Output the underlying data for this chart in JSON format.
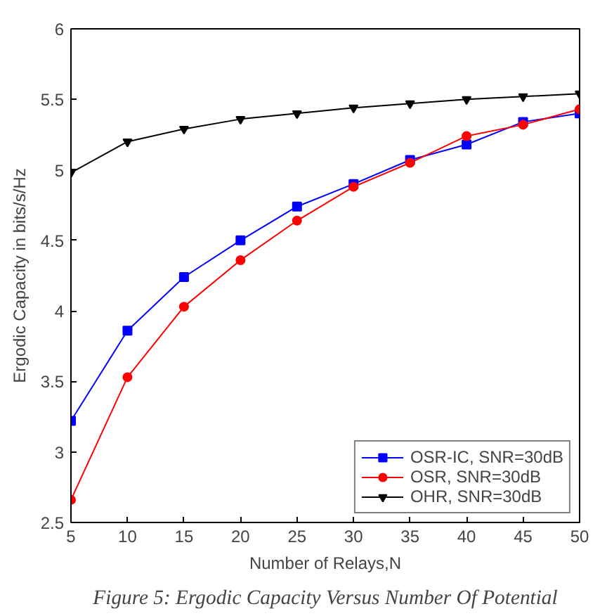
{
  "chart_data": {
    "type": "line",
    "xlabel": "Number of Relays,N",
    "ylabel": "Ergodic Capacity in bits/s/Hz",
    "x": [
      5,
      10,
      15,
      20,
      25,
      30,
      35,
      40,
      45,
      50
    ],
    "series": [
      {
        "name": "OSR-IC, SNR=30dB",
        "color": "#0000ff",
        "marker": "square",
        "values": [
          3.22,
          3.86,
          4.24,
          4.5,
          4.74,
          4.9,
          5.07,
          5.18,
          5.34,
          5.4
        ]
      },
      {
        "name": "OSR, SNR=30dB",
        "color": "#ff0000",
        "marker": "circle",
        "values": [
          2.66,
          3.53,
          4.03,
          4.36,
          4.64,
          4.88,
          5.05,
          5.24,
          5.32,
          5.43
        ]
      },
      {
        "name": "OHR, SNR=30dB",
        "color": "#000000",
        "marker": "triangle",
        "values": [
          4.98,
          5.2,
          5.29,
          5.36,
          5.4,
          5.44,
          5.47,
          5.5,
          5.52,
          5.54
        ]
      }
    ],
    "xlim": [
      5,
      50
    ],
    "xticks": [
      5,
      10,
      15,
      20,
      25,
      30,
      35,
      40,
      45,
      50
    ],
    "ylim": [
      2.5,
      6
    ],
    "yticks": [
      2.5,
      3,
      3.5,
      4,
      4.5,
      5,
      5.5,
      6
    ],
    "grid": false,
    "legend": "bottom right",
    "line_style": "solid",
    "annotations": [
      "Figure 5: Ergodic Capacity Versus Number Of Potential"
    ]
  }
}
